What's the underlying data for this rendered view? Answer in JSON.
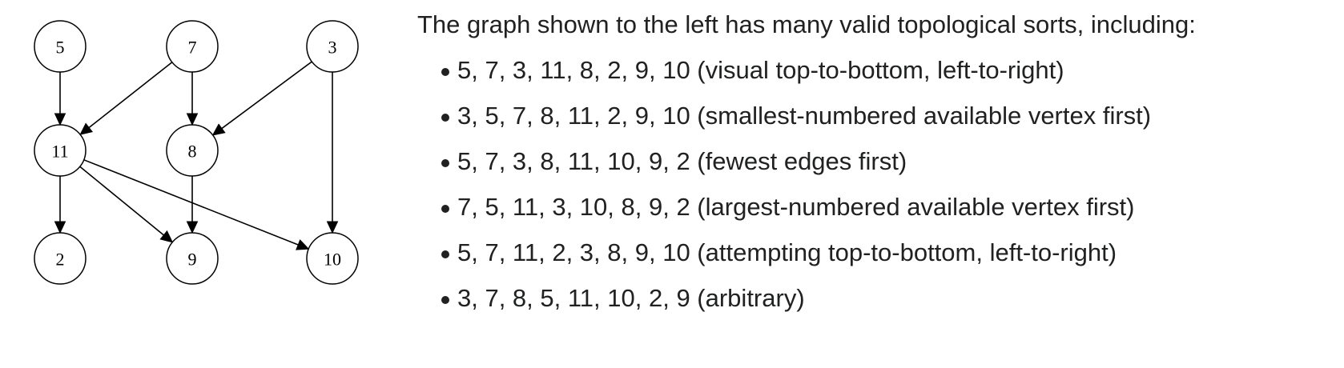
{
  "graph": {
    "nodes": [
      {
        "id": "5",
        "label": "5"
      },
      {
        "id": "7",
        "label": "7"
      },
      {
        "id": "3",
        "label": "3"
      },
      {
        "id": "11",
        "label": "11"
      },
      {
        "id": "8",
        "label": "8"
      },
      {
        "id": "2",
        "label": "2"
      },
      {
        "id": "9",
        "label": "9"
      },
      {
        "id": "10",
        "label": "10"
      }
    ],
    "edges": [
      {
        "from": "5",
        "to": "11"
      },
      {
        "from": "7",
        "to": "11"
      },
      {
        "from": "7",
        "to": "8"
      },
      {
        "from": "3",
        "to": "8"
      },
      {
        "from": "3",
        "to": "10"
      },
      {
        "from": "11",
        "to": "2"
      },
      {
        "from": "11",
        "to": "9"
      },
      {
        "from": "11",
        "to": "10"
      },
      {
        "from": "8",
        "to": "9"
      }
    ]
  },
  "description": {
    "intro": "The graph shown to the left has many valid topological sorts, including:",
    "sorts": [
      "5, 7, 3, 11, 8, 2, 9, 10 (visual top-to-bottom, left-to-right)",
      "3, 5, 7, 8, 11, 2, 9, 10 (smallest-numbered available vertex first)",
      "5, 7, 3, 8, 11, 10, 9, 2 (fewest edges first)",
      "7, 5, 11, 3, 10, 8, 9, 2 (largest-numbered available vertex first)",
      "5, 7, 11, 2, 3, 8, 9, 10 (attempting top-to-bottom, left-to-right)",
      "3, 7, 8, 5, 11, 10, 2, 9 (arbitrary)"
    ]
  }
}
